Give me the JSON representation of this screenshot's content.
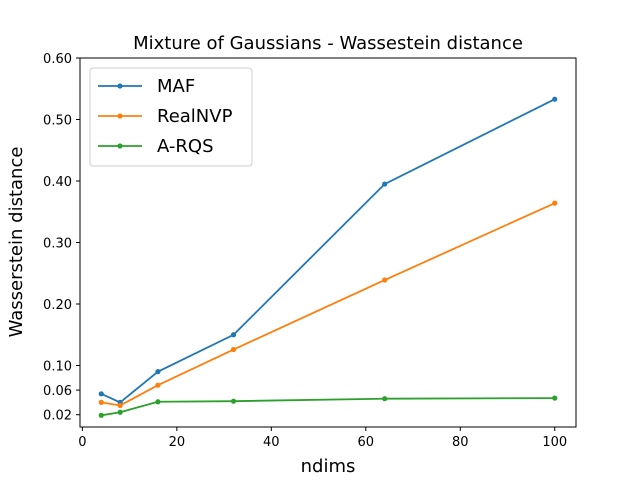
{
  "chart_data": {
    "type": "line",
    "title": "Mixture of Gaussians - Wassestein distance",
    "xlabel": "ndims",
    "ylabel": "Wasserstein distance",
    "xlim": [
      -0.5,
      104.5
    ],
    "ylim": [
      0.0,
      0.6
    ],
    "xticks": [
      0,
      20,
      40,
      60,
      80,
      100
    ],
    "xtick_labels": [
      "0",
      "20",
      "40",
      "60",
      "80",
      "100"
    ],
    "yticks": [
      0.02,
      0.06,
      0.1,
      0.2,
      0.3,
      0.4,
      0.5,
      0.6
    ],
    "ytick_labels": [
      "0.02",
      "0.06",
      "0.10",
      "0.20",
      "0.30",
      "0.40",
      "0.50",
      "0.60"
    ],
    "grid": false,
    "legend_position": "top-left",
    "x": [
      4,
      8,
      16,
      32,
      64,
      100
    ],
    "series": [
      {
        "name": "MAF",
        "color": "#1f77b4",
        "values": [
          0.054,
          0.04,
          0.09,
          0.15,
          0.395,
          0.533
        ]
      },
      {
        "name": "RealNVP",
        "color": "#ff7f0e",
        "values": [
          0.04,
          0.035,
          0.068,
          0.126,
          0.239,
          0.364
        ]
      },
      {
        "name": "A-RQS",
        "color": "#2ca02c",
        "values": [
          0.019,
          0.024,
          0.041,
          0.042,
          0.046,
          0.047
        ]
      }
    ]
  }
}
